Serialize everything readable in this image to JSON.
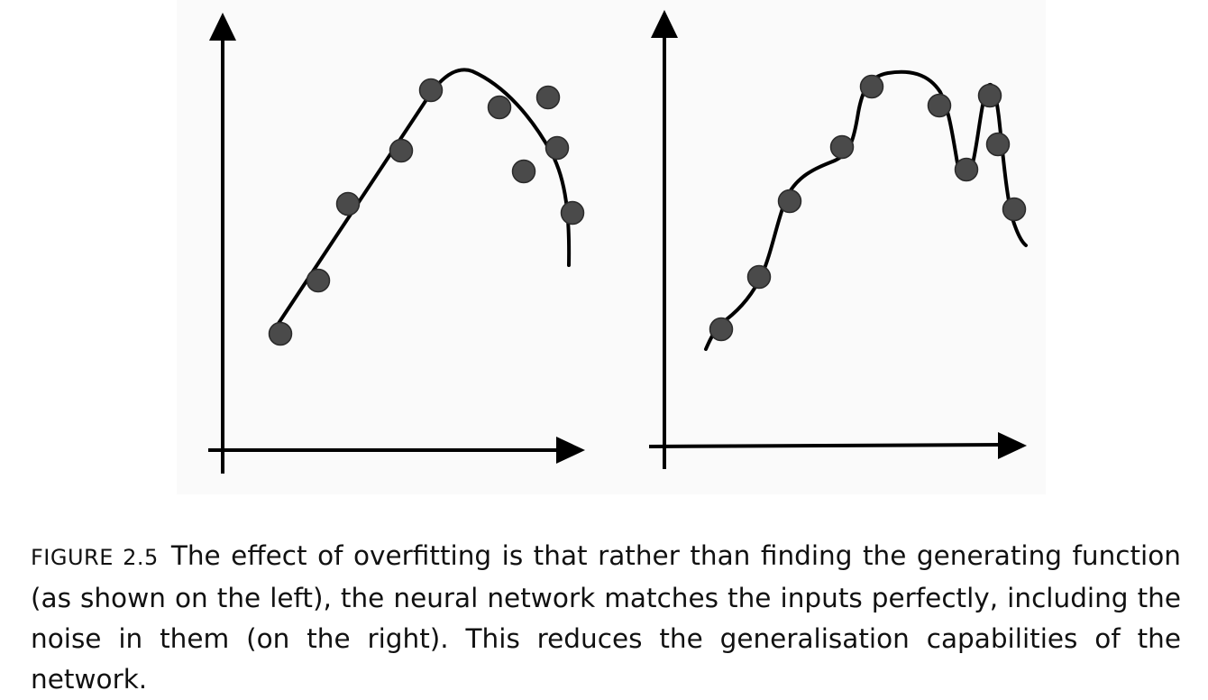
{
  "figure": {
    "colors": {
      "axis": "#000000",
      "curve": "#000000",
      "point_fill": "#4a4a4a",
      "point_stroke": "#2a2a2a",
      "panel_bg": "#fafafa"
    },
    "panels": [
      {
        "id": "left",
        "fit": "smooth generating function",
        "points": [
          [
            311,
            370
          ],
          [
            353,
            311
          ],
          [
            386,
            226
          ],
          [
            445,
            167
          ],
          [
            478,
            100
          ],
          [
            554,
            119
          ],
          [
            608,
            108
          ],
          [
            618,
            164
          ],
          [
            581,
            190
          ],
          [
            635,
            236
          ]
        ]
      },
      {
        "id": "right",
        "fit": "overfitted curve through every point",
        "points": [
          [
            800,
            365
          ],
          [
            842,
            307
          ],
          [
            876,
            223
          ],
          [
            934,
            163
          ],
          [
            967,
            96
          ],
          [
            1042,
            117
          ],
          [
            1098,
            106
          ],
          [
            1107,
            160
          ],
          [
            1072,
            188
          ],
          [
            1125,
            232
          ]
        ]
      }
    ]
  },
  "caption": {
    "label": "FIGURE 2.5",
    "text": "The effect of overfitting is that rather than finding the generating function (as shown on the left), the neural network matches the inputs perfectly, including the noise in them (on the right). This reduces the generalisation capabilities of the network."
  }
}
